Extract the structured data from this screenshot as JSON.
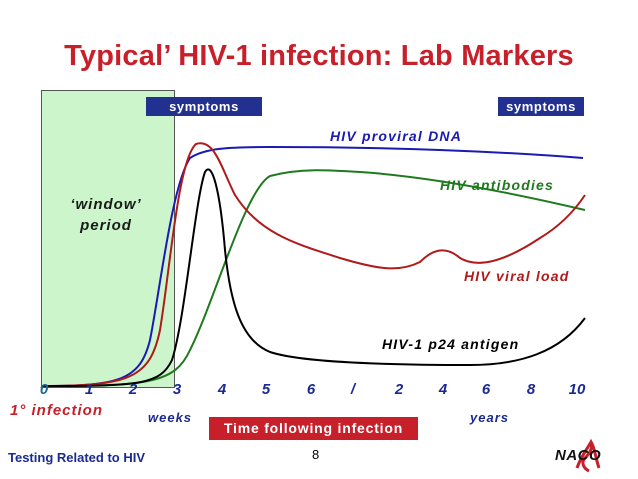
{
  "title": "Typical’ HIV-1 infection: Lab Markers",
  "window_label": "‘window’\nperiod",
  "symptoms_left": "symptoms",
  "symptoms_right": "symptoms",
  "curves": {
    "proviral_dna": "HIV proviral DNA",
    "antibodies": "HIV antibodies",
    "viral_load": "HIV viral load",
    "p24": "HIV-1 p24 antigen"
  },
  "x_ticks": [
    "0",
    "1",
    "2",
    "3",
    "4",
    "5",
    "6",
    "/",
    "2",
    "4",
    "6",
    "8",
    "10"
  ],
  "infection_label": "1° infection",
  "weeks_label": "weeks",
  "years_label": "years",
  "time_label": "Time following infection",
  "footer": "Testing Related to HIV",
  "page_number": "8",
  "logo_text": "NACO",
  "colors": {
    "title": "#c8202a",
    "proviral_dna": "#1a1ab4",
    "antibodies": "#1f7a1f",
    "viral_load": "#b01a1a",
    "p24": "#000000",
    "badge": "#223090",
    "window": "#ccf5cc"
  }
}
